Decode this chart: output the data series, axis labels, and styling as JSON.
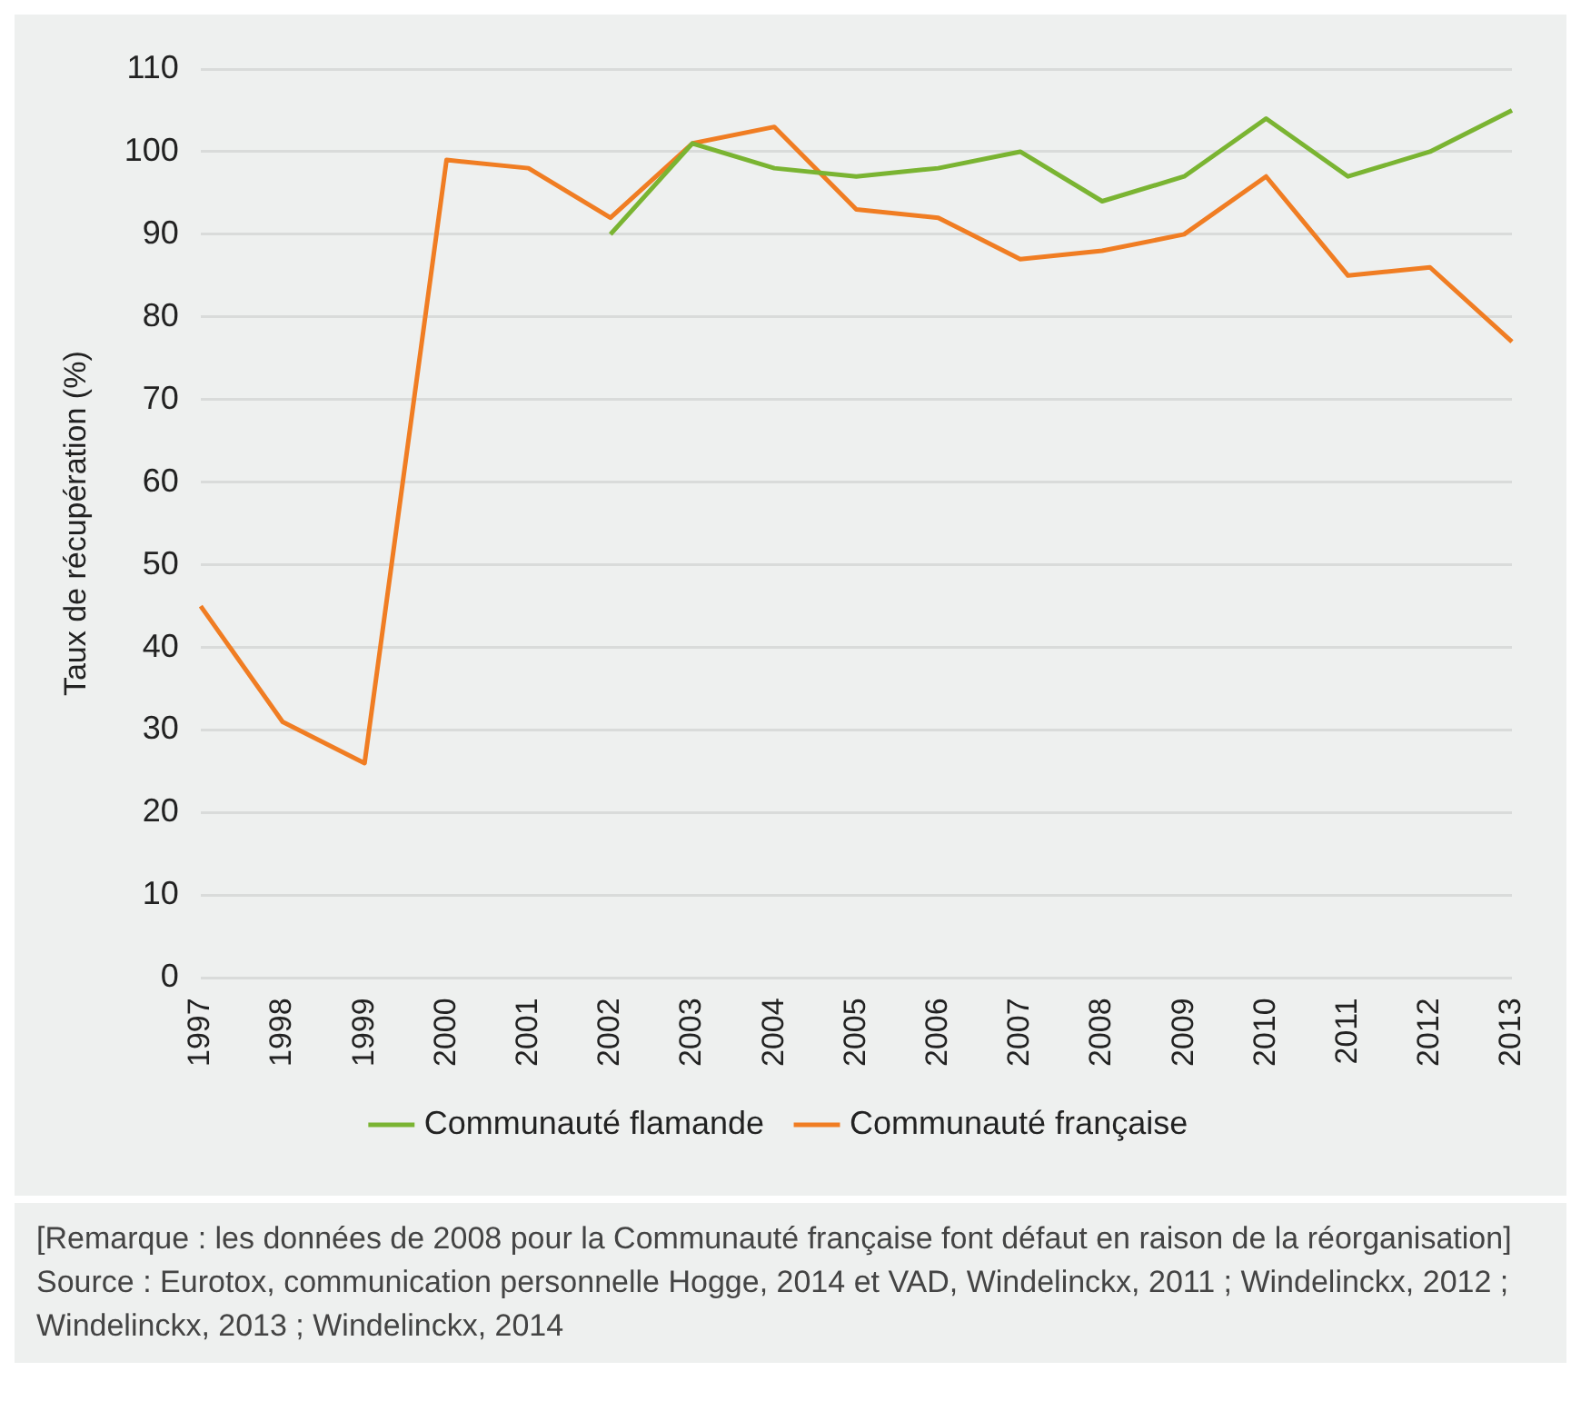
{
  "chart_data": {
    "type": "line",
    "ylabel": "Taux de récupération (%)",
    "categories": [
      "1997",
      "1998",
      "1999",
      "2000",
      "2001",
      "2002",
      "2003",
      "2004",
      "2005",
      "2006",
      "2007",
      "2008",
      "2009",
      "2010",
      "2011",
      "2012",
      "2013"
    ],
    "series": [
      {
        "name": "Communauté flamande",
        "color": "#7ab432",
        "values": [
          null,
          null,
          null,
          null,
          null,
          90,
          101,
          98,
          97,
          98,
          100,
          94,
          97,
          104,
          97,
          100,
          105
        ]
      },
      {
        "name": "Communauté française",
        "color": "#f07d23",
        "values": [
          45,
          31,
          26,
          99,
          98,
          92,
          101,
          103,
          93,
          92,
          87,
          88,
          90,
          97,
          85,
          86,
          77
        ]
      }
    ],
    "ylim": [
      0,
      110
    ],
    "yticks": [
      0,
      10,
      20,
      30,
      40,
      50,
      60,
      70,
      80,
      90,
      100,
      110
    ],
    "grid": "y",
    "legend": "bottom",
    "marker": "none",
    "line_style": "solid",
    "annotations": [
      "[Remarque : les données de 2008 pour la Communauté française font défaut en raison de la réorganisation]",
      "Source : Eurotox, communication personnelle Hogge, 2014 et VAD, Windelinckx, 2011 ; Windelinckx, 2012 ; Windelinckx, 2013 ; Windelinckx, 2014"
    ]
  }
}
